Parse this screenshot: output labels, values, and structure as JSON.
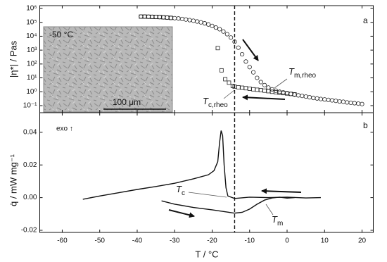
{
  "chart_data": [
    {
      "type": "scatter",
      "ylabel": "|η*| / Pas",
      "log_y": true,
      "xlim": [
        -66,
        23
      ],
      "ylim": [
        0.031,
        1600000
      ],
      "yticks": [
        {
          "value": 0.1,
          "label": "10⁻¹"
        },
        {
          "value": 1,
          "label": "10⁰"
        },
        {
          "value": 10,
          "label": "10¹"
        },
        {
          "value": 100,
          "label": "10²"
        },
        {
          "value": 1000,
          "label": "10³"
        },
        {
          "value": 10000,
          "label": "10⁴"
        },
        {
          "value": 100000,
          "label": "10⁵"
        },
        {
          "value": 1000000,
          "label": "10⁶"
        }
      ],
      "series": [
        {
          "marker": "circle",
          "color": "#222222",
          "x": [
            -39,
            -38,
            -37,
            -36,
            -35,
            -34,
            -33,
            -32,
            -31,
            -30,
            -29,
            -28,
            -27,
            -26,
            -25,
            -24,
            -23,
            -22,
            -21,
            -20,
            -19,
            -18,
            -17,
            -16,
            -15,
            -14,
            -13,
            -12,
            -11,
            -10,
            -9,
            -8,
            -7,
            -6,
            -5,
            -4,
            -3,
            -2,
            -1,
            0,
            1,
            2,
            3,
            4,
            5,
            6,
            7,
            8,
            9,
            10,
            11,
            12,
            13,
            14,
            15,
            16,
            17,
            18,
            19,
            20
          ],
          "values": [
            260000,
            260000,
            255000,
            250000,
            245000,
            240000,
            230000,
            220000,
            210000,
            200000,
            190000,
            175000,
            160000,
            145000,
            130000,
            115000,
            100000,
            85000,
            70000,
            55000,
            42000,
            32000,
            22000,
            14000,
            8000,
            4000,
            1500,
            500,
            150,
            60,
            25,
            10,
            5,
            3,
            2,
            1.5,
            1.2,
            1,
            0.9,
            0.8,
            0.7,
            0.62,
            0.55,
            0.5,
            0.45,
            0.4,
            0.36,
            0.33,
            0.3,
            0.28,
            0.26,
            0.24,
            0.22,
            0.2,
            0.19,
            0.17,
            0.16,
            0.15,
            0.14,
            0.13
          ]
        },
        {
          "marker": "square",
          "color": "#222222",
          "x": [
            -39,
            -38,
            -37,
            -36,
            -35,
            -34,
            -33,
            -32,
            -31,
            -18.5,
            -17.5,
            -16.5,
            -15.5,
            -14.5,
            -14,
            -13,
            -12,
            -11,
            -10,
            -9,
            -8,
            -7,
            -6,
            -5,
            -4,
            -3,
            -2,
            -1,
            0,
            1,
            2
          ],
          "values": [
            260000,
            260000,
            255000,
            250000,
            245000,
            240000,
            230000,
            220000,
            210000,
            1400,
            35,
            8,
            4.5,
            2.6,
            2.3,
            2.1,
            1.95,
            1.8,
            1.65,
            1.5,
            1.4,
            1.3,
            1.2,
            1.1,
            1.0,
            0.92,
            0.85,
            0.8,
            0.75,
            0.7,
            0.65
          ]
        }
      ],
      "reference_x": -14,
      "panel_label": "a",
      "annotations": [
        {
          "text": "T",
          "sub": "m,rheo"
        },
        {
          "text": "T",
          "sub": "c,rheo"
        }
      ],
      "inset": {
        "temperature": "-50 °C",
        "scale": "100 μm"
      }
    },
    {
      "type": "line",
      "xlabel": "T / °C",
      "ylabel": "q̇ / mW mg⁻¹",
      "xlim": [
        -66,
        23
      ],
      "ylim": [
        -0.0213,
        0.052
      ],
      "xticks": [
        -60,
        -50,
        -40,
        -30,
        -20,
        -10,
        0,
        10,
        20
      ],
      "yticks": [
        -0.02,
        {
          "value": 0,
          "label": "0.00"
        },
        0.02,
        0.04
      ],
      "series": [
        {
          "color": "#111111",
          "x": [
            -54.5,
            -50,
            -45,
            -40,
            -35,
            -30,
            -25,
            -21,
            -19.5,
            -18.5,
            -18,
            -17.6,
            -17.2,
            -16.8,
            -16.3,
            -15.8,
            -14,
            -10,
            -5,
            0,
            5,
            9
          ],
          "values": [
            -0.001,
            0.001,
            0.003,
            0.005,
            0.0068,
            0.0088,
            0.0115,
            0.014,
            0.0165,
            0.022,
            0.034,
            0.041,
            0.038,
            0.02,
            0.006,
            0.001,
            -0.0005,
            0.0003,
            0,
            0.0003,
            -0.0002,
            0
          ]
        },
        {
          "color": "#111111",
          "x": [
            -33.5,
            -30,
            -25,
            -20,
            -16,
            -14,
            -12,
            -10,
            -8,
            -6,
            -4,
            -2,
            0,
            2
          ],
          "values": [
            -0.002,
            -0.004,
            -0.006,
            -0.0075,
            -0.0088,
            -0.0095,
            -0.009,
            -0.007,
            -0.004,
            -0.0015,
            -0.0002,
            0.0003,
            -0.0003,
            0
          ]
        }
      ],
      "reference_x": -14,
      "panel_label": "b",
      "note": "exo ↑",
      "annotations": [
        {
          "text": "T",
          "sub": "c"
        },
        {
          "text": "T",
          "sub": "m"
        }
      ]
    }
  ]
}
